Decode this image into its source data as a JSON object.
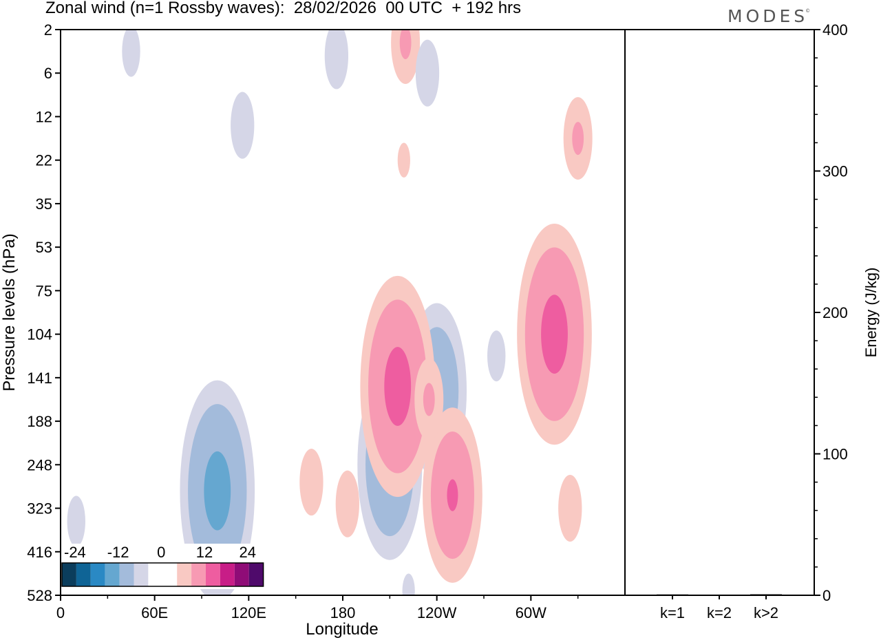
{
  "title": "Zonal wind (n=1 Rossby waves):  28/02/2026  00 UTC  + 192 hrs",
  "brand": "MODES",
  "brand_mark": "©",
  "colors": {
    "neg_levels": [
      "#0b3d5c",
      "#0f6496",
      "#2a89c4",
      "#65a7d0",
      "#a3bbdb",
      "#d5d6e7"
    ],
    "zero": "#ffffff",
    "pos_levels": [
      "#f9c9c3",
      "#f79ab3",
      "#ee5da0",
      "#c81d87",
      "#8f0c77",
      "#4f0a6b"
    ]
  },
  "chart_data": [
    {
      "type": "heatmap",
      "title": "Zonal wind (n=1 Rossby waves):  28/02/2026  00 UTC  + 192 hrs",
      "xlabel": "Longitude",
      "ylabel": "Pressure levels (hPa)",
      "x_ticks": [
        "0",
        "60E",
        "120E",
        "180",
        "120W",
        "60W"
      ],
      "x_tick_degrees": [
        0,
        60,
        120,
        180,
        240,
        300
      ],
      "xlim": [
        0,
        360
      ],
      "y_ticks": [
        "2",
        "6",
        "12",
        "22",
        "35",
        "53",
        "75",
        "104",
        "141",
        "188",
        "248",
        "323",
        "416",
        "528"
      ],
      "colorbar": {
        "tick_labels": [
          "-24",
          "-12",
          "0",
          "12",
          "24"
        ],
        "levels": [
          -30,
          -24,
          -18,
          -12,
          -6,
          -3,
          3,
          6,
          12,
          18,
          24,
          30
        ]
      },
      "contours": [
        {
          "lon": 45,
          "lev": 0.5,
          "sign": -1,
          "peak": 4
        },
        {
          "lon": 100,
          "lev": 10.6,
          "sign": -1,
          "peak": 15
        },
        {
          "lon": 116,
          "lev": 2.2,
          "sign": -1,
          "peak": 5
        },
        {
          "lon": 176,
          "lev": 0.6,
          "sign": -1,
          "peak": 5
        },
        {
          "lon": 210,
          "lev": 10.0,
          "sign": -1,
          "peak": 13
        },
        {
          "lon": 220,
          "lev": 0.3,
          "sign": 1,
          "peak": 6
        },
        {
          "lon": 219,
          "lev": 3.0,
          "sign": 1,
          "peak": 3
        },
        {
          "lon": 234,
          "lev": 1.0,
          "sign": -1,
          "peak": 5
        },
        {
          "lon": 240,
          "lev": 8.3,
          "sign": -1,
          "peak": 12
        },
        {
          "lon": 250,
          "lev": 10.7,
          "sign": 1,
          "peak": 12
        },
        {
          "lon": 330,
          "lev": 2.5,
          "sign": 1,
          "peak": 6
        },
        {
          "lon": 160,
          "lev": 10.4,
          "sign": 1,
          "peak": 5
        },
        {
          "lon": 215,
          "lev": 8.2,
          "sign": 1,
          "peak": 15
        },
        {
          "lon": 235,
          "lev": 8.5,
          "sign": 1,
          "peak": 6
        },
        {
          "lon": 278,
          "lev": 7.5,
          "sign": -1,
          "peak": 4
        },
        {
          "lon": 315,
          "lev": 7.0,
          "sign": 1,
          "peak": 15
        },
        {
          "lon": 325,
          "lev": 11.0,
          "sign": 1,
          "peak": 5
        },
        {
          "lon": 183,
          "lev": 10.9,
          "sign": 1,
          "peak": 5
        },
        {
          "lon": 222,
          "lev": 12.9,
          "sign": -1,
          "peak": 3
        },
        {
          "lon": 10,
          "lev": 11.3,
          "sign": -1,
          "peak": 4
        }
      ]
    },
    {
      "type": "bar",
      "title": "",
      "ylabel": "Energy (J/kg)",
      "categories": [
        "k=1",
        "k=2",
        "k>2"
      ],
      "values": [
        0.6,
        0.4,
        0.7
      ],
      "ylim": [
        0,
        400
      ],
      "y_ticks": [
        "0",
        "100",
        "200",
        "300",
        "400"
      ]
    }
  ]
}
